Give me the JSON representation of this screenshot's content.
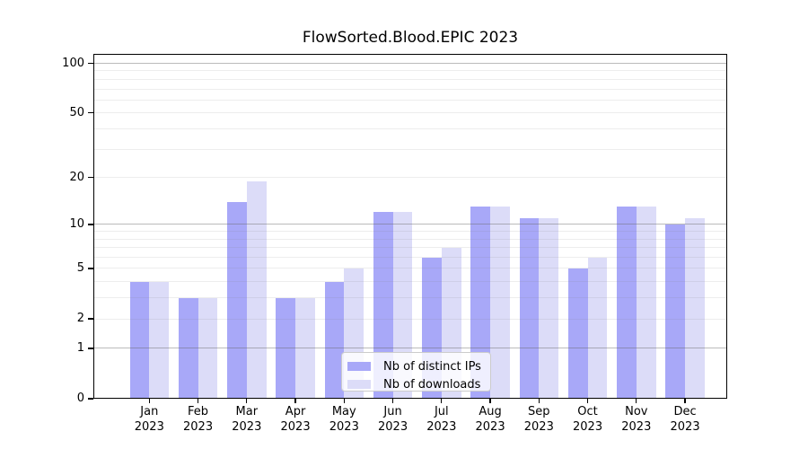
{
  "chart_data": {
    "type": "bar",
    "title": "FlowSorted.Blood.EPIC 2023",
    "categories": [
      "Jan 2023",
      "Feb 2023",
      "Mar 2023",
      "Apr 2023",
      "May 2023",
      "Jun 2023",
      "Jul 2023",
      "Aug 2023",
      "Sep 2023",
      "Oct 2023",
      "Nov 2023",
      "Dec 2023"
    ],
    "series": [
      {
        "name": "Nb of distinct IPs",
        "color": "#a8a8f8",
        "values": [
          4,
          3,
          14,
          3,
          4,
          12,
          6,
          13,
          11,
          5,
          13,
          10
        ]
      },
      {
        "name": "Nb of downloads",
        "color": "#dcdcf8",
        "values": [
          4,
          3,
          19,
          3,
          5,
          12,
          7,
          13,
          11,
          6,
          13,
          11
        ]
      }
    ],
    "xlabel": "",
    "ylabel": "",
    "yscale": "log1p",
    "ylim": [
      0,
      114
    ],
    "yticks": [
      0,
      1,
      2,
      5,
      10,
      20,
      50,
      100
    ],
    "grid_major": [
      1,
      10,
      100
    ],
    "grid_minor": [
      2,
      3,
      4,
      5,
      6,
      7,
      8,
      9,
      20,
      30,
      40,
      50,
      60,
      70,
      80,
      90
    ],
    "legend_position": "lower center",
    "axis_color": "#000000",
    "background_color": "#ffffff"
  }
}
